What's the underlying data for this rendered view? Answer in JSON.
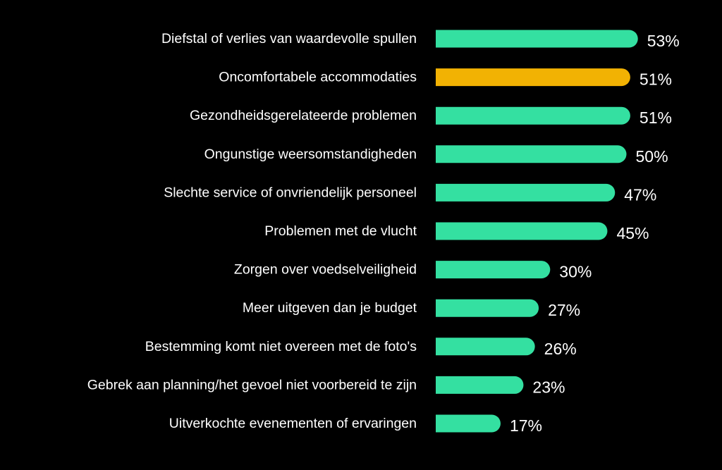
{
  "chart_data": {
    "type": "bar",
    "orientation": "horizontal",
    "categories": [
      "Diefstal of verlies van waardevolle spullen",
      "Oncomfortabele accommodaties",
      "Gezondheidsgerelateerde problemen",
      "Ongunstige weersomstandigheden",
      "Slechte service of onvriendelijk personeel",
      "Problemen met de vlucht",
      "Zorgen over voedselveiligheid",
      "Meer uitgeven dan je budget",
      "Bestemming komt niet overeen met de foto's",
      "Gebrek aan planning/het gevoel niet voorbereid te zijn",
      "Uitverkochte evenementen of ervaringen"
    ],
    "values": [
      53,
      51,
      51,
      50,
      47,
      45,
      30,
      27,
      26,
      23,
      17
    ],
    "value_labels": [
      "53%",
      "51%",
      "51%",
      "50%",
      "47%",
      "45%",
      "30%",
      "27%",
      "26%",
      "23%",
      "17%"
    ],
    "highlight_index": 1,
    "title": "",
    "xlabel": "",
    "ylabel": "",
    "grid": false,
    "legend": "none",
    "colors": {
      "background": "#000000",
      "bar": "#34E0A1",
      "highlight": "#F2B203",
      "text": "#FFFFFF"
    }
  }
}
